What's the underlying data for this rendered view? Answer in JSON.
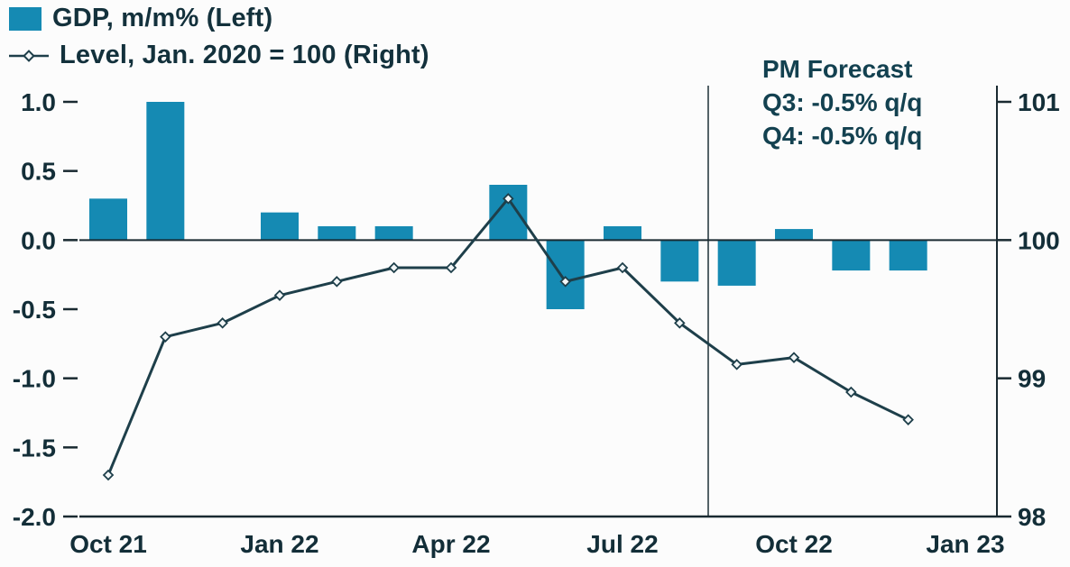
{
  "legend": {
    "bar_label": "GDP, m/m% (Left)",
    "line_label": "Level, Jan. 2020 = 100 (Right)"
  },
  "annotation": {
    "title": "PM Forecast",
    "line1": "Q3: -0.5% q/q",
    "line2": "Q4: -0.5% q/q"
  },
  "colors": {
    "bar": "#158ab3",
    "line": "#1e3f4a",
    "marker_fill": "#f2f6f7",
    "axis": "#1a2a31",
    "text": "#132e38",
    "divider": "#2a3b42",
    "background": "#fcfcfc"
  },
  "chart_data": {
    "type": "bar+line",
    "categories": [
      "Oct 21",
      "Nov 21",
      "Dec 21",
      "Jan 22",
      "Feb 22",
      "Mar 22",
      "Apr 22",
      "May 22",
      "Jun 22",
      "Jul 22",
      "Aug 22",
      "Sep 22",
      "Oct 22",
      "Nov 22",
      "Dec 22"
    ],
    "series": [
      {
        "name": "GDP, m/m% (Left)",
        "type": "bar",
        "axis": "left",
        "values": [
          0.3,
          1.0,
          0,
          0.2,
          0.1,
          0.1,
          0,
          0.4,
          -0.5,
          0.1,
          -0.3,
          -0.33,
          0.08,
          -0.22,
          -0.22
        ]
      },
      {
        "name": "Level, Jan. 2020 = 100 (Right)",
        "type": "line",
        "axis": "right",
        "values": [
          98.3,
          99.3,
          99.4,
          99.6,
          99.7,
          99.8,
          99.8,
          100.3,
          99.7,
          99.8,
          99.4,
          99.1,
          99.15,
          98.9,
          98.7
        ]
      }
    ],
    "left_axis": {
      "min": -2.0,
      "max": 1.0,
      "tick_values": [
        1.0,
        0.5,
        0.0,
        -0.5,
        -1.0,
        -1.5,
        -2.0
      ],
      "tick_labels": [
        "1.0",
        "0.5",
        "0.0",
        "-0.5",
        "-1.0",
        "-1.5",
        "-2.0"
      ]
    },
    "right_axis": {
      "min": 98,
      "max": 101,
      "tick_values": [
        101,
        100,
        99,
        98
      ],
      "tick_labels": [
        "101",
        "100",
        "99",
        "98"
      ]
    },
    "x_tick_labels": [
      "Oct 21",
      "Jan 22",
      "Apr 22",
      "Jul 22",
      "Oct 22",
      "Jan 23"
    ],
    "x_tick_indices": [
      0,
      3,
      6,
      9,
      12,
      15
    ],
    "forecast_divider_x_index": 10.5,
    "grid": false,
    "legend_position": "top-left"
  }
}
